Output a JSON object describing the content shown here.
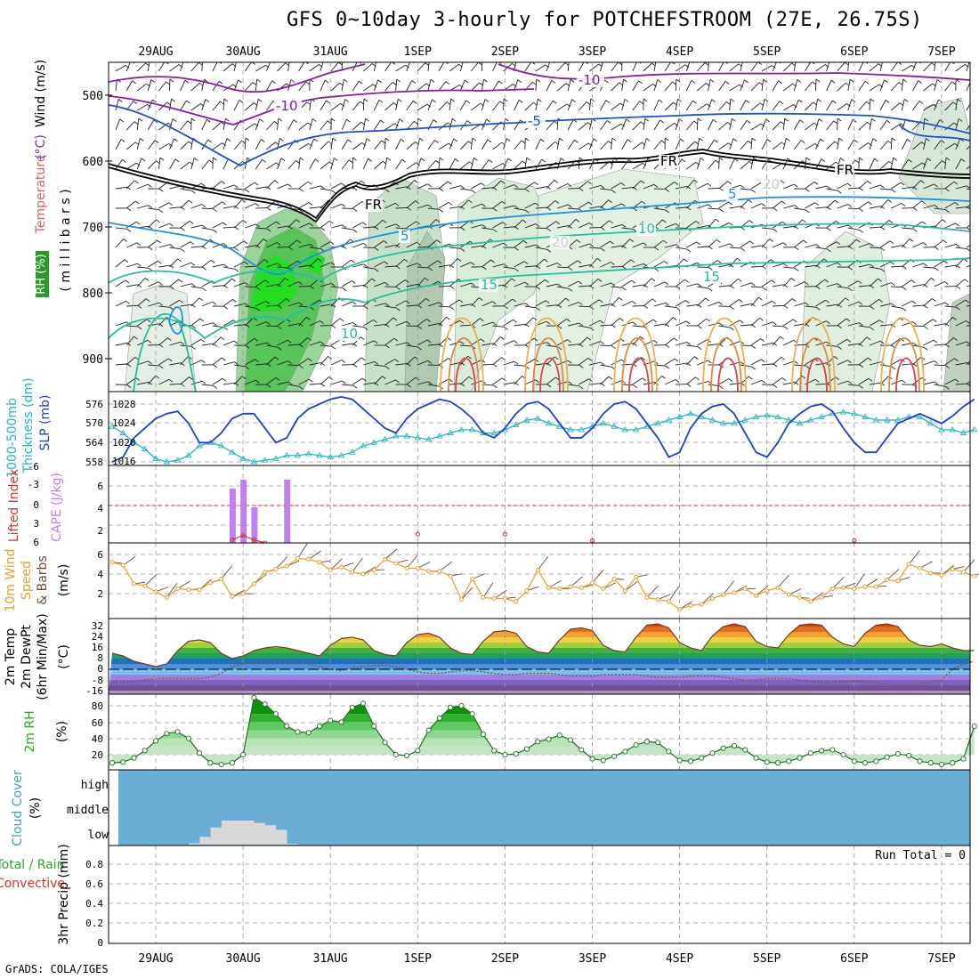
{
  "title": "GFS 0~10day 3-hourly for POTCHEFSTROOM (27E, 26.75S)",
  "credit": "GrADS: COLA/IGES",
  "dates": [
    "29AUG",
    "30AUG",
    "31AUG",
    "1SEP",
    "2SEP",
    "3SEP",
    "4SEP",
    "5SEP",
    "6SEP",
    "7SEP"
  ],
  "colors": {
    "rh_green": "#1fc91f",
    "rh_shade": "#8fbc8f",
    "slp": "#1f3fd6",
    "thickness": "#26b8c0",
    "cape": "#c080f0",
    "lifted": "#e03030",
    "wind": "#e8a030",
    "cloud_bg": "#6aaed6",
    "cloud_low": "#d8d8d8",
    "rh2m": "#22aa22"
  },
  "panels": {
    "upper": {
      "ylabel_parts": [
        {
          "text": "Wind (m/s)",
          "color": "#000000"
        },
        {
          "text": "Temperature",
          "color": "#e06060"
        },
        {
          "text": "(°C)",
          "color": "#7030a0"
        }
      ],
      "axis_label": "( m i l l i b a r s )",
      "rh_label": "RH (%)",
      "yticks": [
        "500",
        "600",
        "700",
        "800",
        "900"
      ],
      "contour_labels": [
        {
          "text": "-10",
          "color": "#8020a0"
        },
        {
          "text": "-10",
          "color": "#8020a0"
        },
        {
          "text": "-5",
          "color": "#2050d0"
        },
        {
          "text": "FR",
          "color": "#000000"
        },
        {
          "text": "FR",
          "color": "#000000"
        },
        {
          "text": "FR",
          "color": "#000000"
        },
        {
          "text": "5",
          "color": "#1f90e0"
        },
        {
          "text": "5",
          "color": "#1f90e0"
        },
        {
          "text": "10",
          "color": "#20c0a0"
        },
        {
          "text": "10",
          "color": "#20c0a0"
        },
        {
          "text": "15",
          "color": "#20c0a0"
        },
        {
          "text": "15",
          "color": "#20c0a0"
        },
        {
          "text": "20",
          "color": "#cccccc"
        },
        {
          "text": "20",
          "color": "#cccccc"
        }
      ]
    },
    "slp": {
      "ylabel_left": "1000-500mb",
      "ylabel_left2": "Thickness (dm)",
      "ylabel_right": "SLP (mb)",
      "left_ticks": [
        "576",
        "570",
        "564",
        "558"
      ],
      "right_ticks": [
        "1028",
        "1024",
        "1020",
        "1016"
      ]
    },
    "cape": {
      "ylabel_left": "Lifted Index",
      "ylabel_right": "CAPE (J/kg)",
      "left_ticks": [
        "-6",
        "-3",
        "0",
        "3",
        "6"
      ],
      "right_ticks": [
        "6",
        "4",
        "2"
      ]
    },
    "wind": {
      "ylabel_a": "10m Wind",
      "ylabel_b": "Speed",
      "ylabel_c": "& Barbs",
      "unit": "(m/s)",
      "ticks": [
        "6",
        "4",
        "2"
      ]
    },
    "temp": {
      "ylabel_a": "2m Temp",
      "ylabel_b": "2m DewPt",
      "ylabel_c": "(6hr Min/Max)",
      "unit": "(°C)",
      "ticks": [
        "32",
        "24",
        "16",
        "8",
        "0",
        "-8",
        "-16"
      ]
    },
    "rh": {
      "ylabel": "2m RH",
      "unit": "(%)",
      "ticks": [
        "80",
        "60",
        "40",
        "20"
      ]
    },
    "cloud": {
      "ylabel": "Cloud Cover",
      "unit": "(%)",
      "levels": [
        "high",
        "middle",
        "low"
      ]
    },
    "precip": {
      "ylabel_a": "Total / Rain",
      "ylabel_b": "Convective",
      "ylabel_c": "3hr Precip (mm)",
      "run_total": "Run Total = 0",
      "ticks": [
        "0.8",
        "0.6",
        "0.4",
        "0.2",
        "0"
      ]
    }
  },
  "chart_data": [
    {
      "type": "line",
      "name": "slp-thickness",
      "x": [
        0,
        0.125,
        0.25,
        0.375,
        0.5,
        0.625,
        0.75,
        0.875,
        1,
        1.125,
        1.25,
        1.375,
        1.5,
        1.625,
        1.75,
        1.875,
        2,
        2.125,
        2.25,
        2.375,
        2.5,
        2.625,
        2.75,
        2.875,
        3,
        3.125,
        3.25,
        3.375,
        3.5,
        3.625,
        3.75,
        3.875,
        4,
        4.125,
        4.25,
        4.375,
        4.5,
        4.625,
        4.75,
        4.875,
        5,
        5.125,
        5.25,
        5.375,
        5.5,
        5.625,
        5.75,
        5.875,
        6,
        6.125,
        6.25,
        6.375,
        6.5,
        6.625,
        6.75,
        6.875,
        7,
        7.125,
        7.25,
        7.375,
        7.5,
        7.625,
        7.75,
        7.875,
        8,
        8.125,
        8.25,
        8.375,
        8.5,
        8.625,
        8.75,
        8.875,
        9,
        9.125,
        9.25,
        9.375,
        9.5,
        9.625,
        9.75,
        9.875
      ],
      "series": [
        {
          "name": "SLP (mb)",
          "axis": "right",
          "values": [
            1016,
            1017,
            1021,
            1023,
            1025,
            1026,
            1026.5,
            1024,
            1020,
            1020,
            1022,
            1025,
            1026,
            1026,
            1023,
            1020,
            1021,
            1025,
            1027,
            1028,
            1029,
            1029.5,
            1029,
            1027,
            1025,
            1023,
            1022,
            1025,
            1027,
            1028,
            1029,
            1028.5,
            1027,
            1025,
            1022,
            1021,
            1023,
            1026,
            1028,
            1028.5,
            1027,
            1024,
            1021,
            1021,
            1023,
            1026,
            1028,
            1028.5,
            1027,
            1024,
            1021,
            1017,
            1018,
            1023,
            1026,
            1027.5,
            1028,
            1026,
            1022,
            1018,
            1017,
            1020,
            1024,
            1026,
            1027.5,
            1028,
            1026.5,
            1023,
            1020,
            1018,
            1018,
            1021,
            1024,
            1025,
            1026,
            1025,
            1024,
            1025.5,
            1027.5,
            1029
          ]
        },
        {
          "name": "Thickness (dm)",
          "axis": "left",
          "values": [
            569,
            567,
            564,
            562,
            559,
            558,
            558.5,
            560,
            563,
            564,
            563,
            561,
            559,
            558,
            558.5,
            559,
            560,
            560,
            560.5,
            560,
            559.5,
            560,
            561,
            563,
            564,
            565,
            566,
            566,
            565.5,
            565,
            566,
            567,
            568,
            568,
            567,
            567,
            568,
            569.5,
            571,
            571.5,
            570,
            569,
            568,
            568,
            569,
            570,
            569,
            568,
            568,
            569,
            570,
            571,
            572,
            573,
            572,
            571,
            570,
            570,
            571,
            572,
            572.5,
            572,
            571,
            570,
            571,
            572,
            573,
            573.5,
            573,
            572,
            571,
            571,
            571,
            572,
            572,
            570,
            568,
            568,
            567,
            568
          ]
        }
      ],
      "ylim_left": [
        556,
        578
      ],
      "ylim_right": [
        1014,
        1031
      ]
    },
    {
      "type": "bar",
      "name": "cape",
      "x": [
        1.375,
        1.5,
        1.625,
        2.0
      ],
      "values": [
        6.1,
        7.1,
        4.0,
        7.1
      ],
      "ylim": [
        0,
        8
      ]
    },
    {
      "type": "line",
      "name": "lifted-index",
      "x": [
        1.375,
        1.5,
        1.625,
        1.75,
        3.5,
        4.5,
        5.5,
        8.5
      ],
      "values": [
        5.5,
        4.8,
        5.5,
        6,
        4.6,
        4.6,
        5.6,
        5.6
      ],
      "ylim": [
        -6,
        6
      ]
    },
    {
      "type": "line",
      "name": "10m-wind-speed",
      "x": [
        0,
        0.125,
        0.25,
        0.375,
        0.5,
        0.625,
        0.75,
        0.875,
        1,
        1.125,
        1.25,
        1.375,
        1.5,
        1.625,
        1.75,
        1.875,
        2,
        2.125,
        2.25,
        2.375,
        2.5,
        2.625,
        2.75,
        2.875,
        3,
        3.125,
        3.25,
        3.375,
        3.5,
        3.625,
        3.75,
        3.875,
        4,
        4.125,
        4.25,
        4.375,
        4.5,
        4.625,
        4.75,
        4.875,
        5,
        5.125,
        5.25,
        5.375,
        5.5,
        5.625,
        5.75,
        5.875,
        6,
        6.125,
        6.25,
        6.375,
        6.5,
        6.625,
        6.75,
        6.875,
        7,
        7.125,
        7.25,
        7.375,
        7.5,
        7.625,
        7.75,
        7.875,
        8,
        8.125,
        8.25,
        8.375,
        8.5,
        8.625,
        8.75,
        8.875,
        9,
        9.125,
        9.25,
        9.375,
        9.5,
        9.625,
        9.75,
        9.875
      ],
      "values": [
        5.2,
        4.9,
        3,
        2.8,
        2.2,
        1.6,
        2.5,
        2.4,
        2.4,
        3.1,
        3.5,
        1.7,
        2,
        3,
        4.2,
        4.5,
        4.8,
        5.6,
        5.5,
        5.2,
        4.4,
        4.7,
        4.2,
        4,
        4.4,
        5.5,
        5.1,
        4.6,
        4.6,
        4.3,
        4.3,
        3.8,
        1.4,
        3.5,
        1.6,
        1.5,
        1.5,
        1.2,
        2.3,
        4.4,
        2.6,
        2.5,
        2.7,
        2.6,
        3.1,
        2.5,
        3.5,
        2.3,
        3.7,
        1.6,
        1.4,
        1.2,
        0.4,
        0.8,
        0.9,
        1.5,
        1.9,
        2.1,
        2.5,
        1.8,
        2.3,
        2.6,
        1.9,
        1.6,
        1.2,
        1.6,
        2.5,
        2.6,
        2.5,
        2.7,
        2.7,
        3.4,
        3.3,
        5,
        4.6,
        4.1,
        3.9,
        4.5,
        4.2,
        3.8
      ],
      "ylim": [
        0,
        7
      ]
    },
    {
      "type": "area",
      "name": "2m-temp-dewpt",
      "x": [
        0,
        0.125,
        0.25,
        0.375,
        0.5,
        0.625,
        0.75,
        0.875,
        1,
        1.125,
        1.25,
        1.375,
        1.5,
        1.625,
        1.75,
        1.875,
        2,
        2.125,
        2.25,
        2.375,
        2.5,
        2.625,
        2.75,
        2.875,
        3,
        3.125,
        3.25,
        3.375,
        3.5,
        3.625,
        3.75,
        3.875,
        4,
        4.125,
        4.25,
        4.375,
        4.5,
        4.625,
        4.75,
        4.875,
        5,
        5.125,
        5.25,
        5.375,
        5.5,
        5.625,
        5.75,
        5.875,
        6,
        6.125,
        6.25,
        6.375,
        6.5,
        6.625,
        6.75,
        6.875,
        7,
        7.125,
        7.25,
        7.375,
        7.5,
        7.625,
        7.75,
        7.875,
        8,
        8.125,
        8.25,
        8.375,
        8.5,
        8.625,
        8.75,
        8.875,
        9,
        9.125,
        9.25,
        9.375,
        9.5,
        9.625,
        9.75,
        9.875
      ],
      "series": [
        {
          "name": "2m Temp",
          "values": [
            12,
            10,
            6,
            4,
            2,
            4,
            14,
            21,
            22,
            20,
            12,
            8,
            10,
            14,
            16,
            17,
            16,
            14,
            12,
            10,
            18,
            23,
            24,
            22,
            14,
            11,
            10,
            20,
            26,
            27,
            24,
            16,
            12,
            11,
            21,
            28,
            29,
            27,
            17,
            13,
            12,
            22,
            30,
            31,
            29,
            18,
            14,
            13,
            24,
            33,
            34,
            31,
            20,
            16,
            14,
            25,
            32,
            34,
            32,
            21,
            17,
            16,
            26,
            33,
            34,
            33,
            24,
            19,
            17,
            27,
            33,
            34,
            32,
            22,
            18,
            17,
            19,
            16,
            14,
            14
          ]
        },
        {
          "name": "2m DewPt",
          "values": [
            -10,
            -10,
            -9,
            -8,
            -7,
            -7,
            -7,
            -7,
            -7,
            -6,
            -3,
            2,
            4,
            5,
            6,
            6,
            6,
            5,
            4,
            2,
            0,
            -1,
            1,
            2,
            3,
            3,
            2,
            0,
            -2,
            -3,
            -3,
            -2,
            -1,
            -1,
            -2,
            -3,
            -4,
            -4,
            -3,
            -3,
            -3,
            -4,
            -5,
            -5,
            -5,
            -4,
            -4,
            -4,
            -4,
            -5,
            -6,
            -6,
            -6,
            -5,
            -5,
            -5,
            -6,
            -7,
            -8,
            -8,
            -7,
            -7,
            -7,
            -8,
            -9,
            -10,
            -10,
            -9,
            -9,
            -9,
            -10,
            -11,
            -12,
            -12,
            -11,
            -10,
            -8,
            0,
            4,
            6
          ]
        }
      ],
      "ylim": [
        -20,
        34
      ]
    },
    {
      "type": "area",
      "name": "2m-rh",
      "x": [
        0,
        0.125,
        0.25,
        0.375,
        0.5,
        0.625,
        0.75,
        0.875,
        1,
        1.125,
        1.25,
        1.375,
        1.5,
        1.625,
        1.75,
        1.875,
        2,
        2.125,
        2.25,
        2.375,
        2.5,
        2.625,
        2.75,
        2.875,
        3,
        3.125,
        3.25,
        3.375,
        3.5,
        3.625,
        3.75,
        3.875,
        4,
        4.125,
        4.25,
        4.375,
        4.5,
        4.625,
        4.75,
        4.875,
        5,
        5.125,
        5.25,
        5.375,
        5.5,
        5.625,
        5.75,
        5.875,
        6,
        6.125,
        6.25,
        6.375,
        6.5,
        6.625,
        6.75,
        6.875,
        7,
        7.125,
        7.25,
        7.375,
        7.5,
        7.625,
        7.75,
        7.875,
        8,
        8.125,
        8.25,
        8.375,
        8.5,
        8.625,
        8.75,
        8.875,
        9,
        9.125,
        9.25,
        9.375,
        9.5,
        9.625,
        9.75,
        9.875
      ],
      "values": [
        10,
        11,
        16,
        25,
        37,
        46,
        48,
        40,
        22,
        10,
        8,
        10,
        20,
        90,
        82,
        70,
        55,
        48,
        47,
        55,
        62,
        60,
        78,
        83,
        55,
        35,
        20,
        19,
        25,
        50,
        65,
        78,
        80,
        70,
        45,
        25,
        20,
        21,
        27,
        36,
        39,
        44,
        38,
        26,
        15,
        13,
        18,
        24,
        32,
        36,
        35,
        24,
        13,
        12,
        16,
        22,
        28,
        31,
        26,
        16,
        11,
        10,
        12,
        16,
        22,
        25,
        26,
        20,
        12,
        10,
        12,
        17,
        21,
        19,
        12,
        10,
        8,
        10,
        15,
        55
      ]
    },
    {
      "type": "area",
      "name": "cloud-cover",
      "levels": [
        "high",
        "middle",
        "low"
      ],
      "x": [
        1,
        1.125,
        1.25,
        1.375,
        1.5,
        1.625,
        1.75,
        1.875,
        2,
        2.125
      ],
      "low_values": [
        2,
        30,
        70,
        100,
        100,
        100,
        90,
        80,
        60,
        0
      ]
    }
  ]
}
